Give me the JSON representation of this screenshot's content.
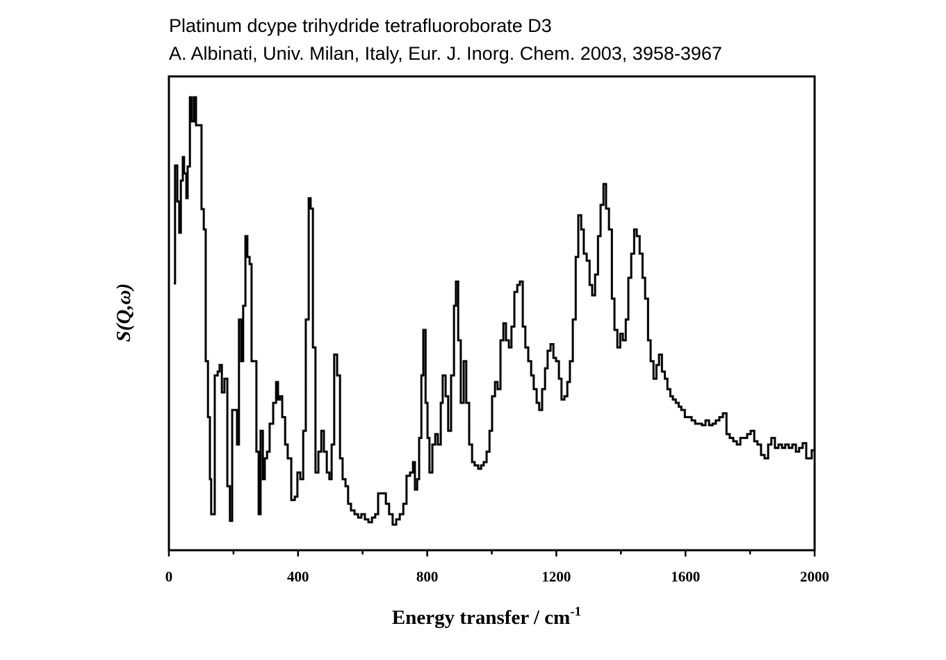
{
  "chart_data": {
    "type": "line",
    "title": "Platinum dcype trihydride tetrafluoroborate D3",
    "subtitle": "A. Albinati, Univ. Milan, Italy, Eur. J. Inorg. Chem. 2003, 3958-3967",
    "xlabel": "Energy transfer / cm",
    "xlabel_superscript": "-1",
    "ylabel": "S(Q,ω)",
    "xlim": [
      0,
      2000
    ],
    "ylim": [
      0,
      100
    ],
    "xticks": [
      0,
      200,
      400,
      600,
      800,
      1000,
      1200,
      1400,
      1600,
      1800,
      2000
    ],
    "xtick_labels": [
      "0",
      "400",
      "800",
      "1200",
      "1600",
      "2000"
    ],
    "grid": false,
    "line_color": "#000000",
    "series": [
      {
        "name": "S(Q,w)",
        "x": [
          15,
          19,
          26,
          32,
          37,
          43,
          47,
          54,
          58,
          65,
          71,
          78,
          84,
          93,
          101,
          108,
          114,
          121,
          127,
          131,
          138,
          142,
          151,
          157,
          164,
          172,
          181,
          189,
          196,
          205,
          211,
          217,
          224,
          230,
          237,
          243,
          250,
          256,
          265,
          271,
          278,
          284,
          291,
          297,
          304,
          312,
          323,
          332,
          338,
          344,
          351,
          360,
          368,
          379,
          390,
          398,
          407,
          416,
          424,
          433,
          439,
          446,
          454,
          463,
          472,
          480,
          489,
          497,
          504,
          512,
          521,
          530,
          538,
          547,
          555,
          564,
          575,
          586,
          596,
          607,
          618,
          629,
          639,
          648,
          661,
          672,
          682,
          693,
          704,
          715,
          726,
          736,
          747,
          756,
          762,
          769,
          775,
          782,
          788,
          795,
          801,
          807,
          816,
          825,
          833,
          842,
          848,
          857,
          865,
          874,
          883,
          889,
          896,
          904,
          913,
          921,
          930,
          939,
          947,
          958,
          967,
          975,
          984,
          993,
          1001,
          1010,
          1018,
          1027,
          1036,
          1044,
          1053,
          1061,
          1070,
          1079,
          1087,
          1096,
          1104,
          1113,
          1122,
          1130,
          1139,
          1147,
          1156,
          1165,
          1173,
          1182,
          1191,
          1199,
          1208,
          1216,
          1225,
          1234,
          1242,
          1251,
          1260,
          1268,
          1277,
          1285,
          1294,
          1303,
          1311,
          1320,
          1329,
          1337,
          1346,
          1354,
          1363,
          1372,
          1380,
          1389,
          1398,
          1406,
          1415,
          1423,
          1432,
          1441,
          1449,
          1458,
          1467,
          1475,
          1484,
          1492,
          1501,
          1510,
          1518,
          1527,
          1536,
          1544,
          1553,
          1561,
          1570,
          1579,
          1587,
          1598,
          1608,
          1619,
          1630,
          1641,
          1651,
          1662,
          1673,
          1684,
          1694,
          1705,
          1716,
          1727,
          1737,
          1748,
          1759,
          1770,
          1780,
          1791,
          1802,
          1813,
          1823,
          1834,
          1845,
          1856,
          1866,
          1877,
          1888,
          1899,
          1909,
          1920,
          1931,
          1942,
          1952,
          1963,
          1974,
          1985,
          1991,
          2000
        ],
        "y": [
          56.3,
          81.2,
          73.6,
          67,
          78,
          83,
          79.5,
          74.3,
          81,
          95.6,
          90.5,
          95.6,
          89.7,
          89.7,
          72,
          67.7,
          39.9,
          28.1,
          15,
          7.6,
          7.6,
          36.9,
          37.7,
          39.1,
          33.3,
          36.2,
          13.5,
          6.2,
          29.6,
          29.6,
          22.3,
          48.7,
          39.9,
          51.6,
          66.3,
          61.9,
          60.4,
          39.9,
          39.9,
          20.8,
          7.6,
          25.2,
          15,
          19.4,
          20.8,
          26.7,
          31.1,
          35.5,
          31.8,
          32.5,
          28.1,
          22.3,
          19.4,
          10.6,
          11.3,
          16.4,
          15,
          25.2,
          48.7,
          74.3,
          72.1,
          42.8,
          16.4,
          20.8,
          25.2,
          20.8,
          16.4,
          15,
          22.3,
          41.3,
          36.9,
          19.4,
          15,
          13.5,
          9.8,
          8.4,
          7.6,
          6.9,
          7.6,
          6.5,
          5.9,
          6.9,
          7.6,
          12,
          12,
          9.8,
          7.6,
          5.4,
          6.5,
          7.6,
          9.8,
          15.7,
          16.4,
          18.6,
          12.8,
          15,
          23.7,
          36.9,
          46.5,
          31.1,
          23.7,
          16.4,
          22.3,
          24.5,
          22.3,
          31.1,
          36.9,
          32.5,
          25.2,
          36.9,
          51.6,
          56.7,
          44.3,
          31.1,
          39.9,
          31.1,
          22.3,
          18.6,
          17.9,
          17.2,
          17.9,
          18.6,
          20.8,
          25.2,
          32.5,
          35.5,
          34,
          44.3,
          47.9,
          44.3,
          42.8,
          47.2,
          54.5,
          56,
          56.7,
          47.2,
          42.8,
          39.9,
          36.9,
          34,
          31.1,
          29.6,
          34,
          38.4,
          42.1,
          43.5,
          40.6,
          39.9,
          36.2,
          31.8,
          32.5,
          35.5,
          39.9,
          48.7,
          61.9,
          70.7,
          67.7,
          62.6,
          61.1,
          56,
          53.8,
          58.2,
          66.3,
          72.9,
          77.3,
          72.1,
          67.7,
          53.1,
          46.5,
          42.8,
          45.7,
          44.3,
          48.7,
          57.5,
          62.6,
          67.7,
          66.3,
          62.6,
          57.5,
          53.1,
          44.3,
          39.9,
          36.2,
          39.1,
          41.3,
          37.7,
          36.2,
          34,
          32.5,
          31.8,
          31.1,
          30.3,
          29.6,
          28.1,
          28.1,
          27.4,
          26.7,
          26.7,
          26.4,
          27.4,
          26.4,
          26.7,
          27.4,
          28.1,
          28.9,
          24.5,
          23.7,
          23,
          22.3,
          23.7,
          23.7,
          24.5,
          25.2,
          23,
          22.3,
          20.1,
          19.4,
          22.3,
          23.7,
          21.6,
          22.3,
          21.6,
          22.3,
          21.6,
          22.3,
          20.8,
          21.6,
          22.6,
          19.4,
          19.4,
          21.1,
          21.1
        ]
      }
    ]
  }
}
